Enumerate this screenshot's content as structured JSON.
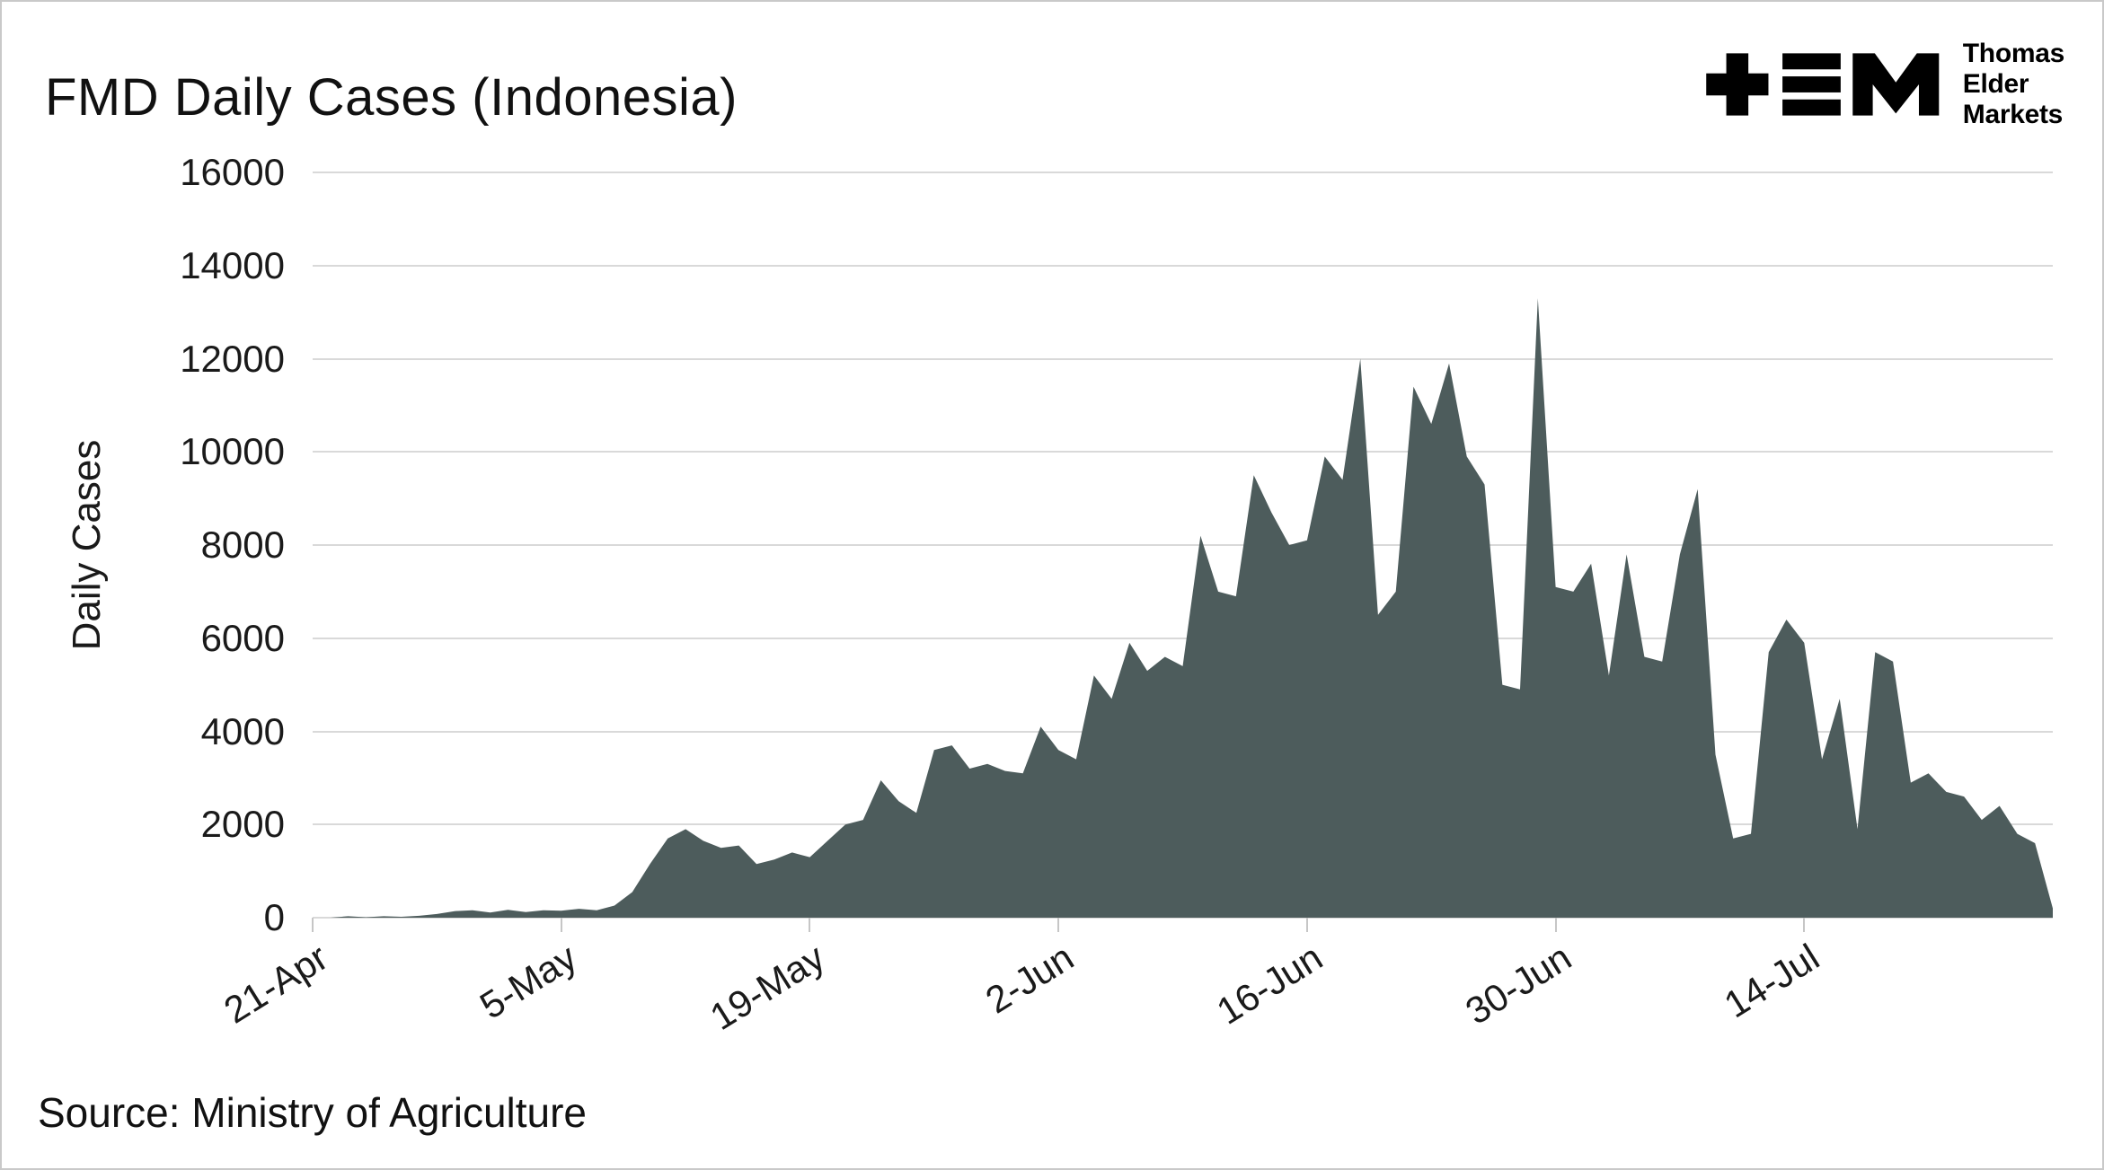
{
  "title": "FMD Daily Cases (Indonesia)",
  "source": "Source: Ministry of Agriculture",
  "logo": {
    "name": "Thomas Elder Markets",
    "lines": [
      "Thomas",
      "Elder",
      "Markets"
    ]
  },
  "colors": {
    "area_fill": "#4d5c5c",
    "gridline": "#d9d9d9",
    "text": "#1a1a1a",
    "background": "#ffffff"
  },
  "chart_data": {
    "type": "area",
    "title": "FMD Daily Cases (Indonesia)",
    "xlabel": "",
    "ylabel": "Daily Cases",
    "ylim": [
      0,
      16000
    ],
    "grid": "horizontal",
    "legend": "none",
    "fill_color": "#4d5c5c",
    "y_ticks": [
      0,
      2000,
      4000,
      6000,
      8000,
      10000,
      12000,
      14000,
      16000
    ],
    "x_ticks": [
      {
        "label": "21-Apr",
        "day": 0
      },
      {
        "label": "5-May",
        "day": 14
      },
      {
        "label": "19-May",
        "day": 28
      },
      {
        "label": "2-Jun",
        "day": 42
      },
      {
        "label": "16-Jun",
        "day": 56
      },
      {
        "label": "30-Jun",
        "day": 70
      },
      {
        "label": "14-Jul",
        "day": 84
      }
    ],
    "x": [
      "21-Apr",
      "22-Apr",
      "23-Apr",
      "24-Apr",
      "25-Apr",
      "26-Apr",
      "27-Apr",
      "28-Apr",
      "29-Apr",
      "30-Apr",
      "1-May",
      "2-May",
      "3-May",
      "4-May",
      "5-May",
      "6-May",
      "7-May",
      "8-May",
      "9-May",
      "10-May",
      "11-May",
      "12-May",
      "13-May",
      "14-May",
      "15-May",
      "16-May",
      "17-May",
      "18-May",
      "19-May",
      "20-May",
      "21-May",
      "22-May",
      "23-May",
      "24-May",
      "25-May",
      "26-May",
      "27-May",
      "28-May",
      "29-May",
      "30-May",
      "31-May",
      "1-Jun",
      "2-Jun",
      "3-Jun",
      "4-Jun",
      "5-Jun",
      "6-Jun",
      "7-Jun",
      "8-Jun",
      "9-Jun",
      "10-Jun",
      "11-Jun",
      "12-Jun",
      "13-Jun",
      "14-Jun",
      "15-Jun",
      "16-Jun",
      "17-Jun",
      "18-Jun",
      "19-Jun",
      "20-Jun",
      "21-Jun",
      "22-Jun",
      "23-Jun",
      "24-Jun",
      "25-Jun",
      "26-Jun",
      "27-Jun",
      "28-Jun",
      "29-Jun",
      "30-Jun",
      "1-Jul",
      "2-Jul",
      "3-Jul",
      "4-Jul",
      "5-Jul",
      "6-Jul",
      "7-Jul",
      "8-Jul",
      "9-Jul",
      "10-Jul",
      "11-Jul",
      "12-Jul",
      "13-Jul",
      "14-Jul",
      "15-Jul",
      "16-Jul",
      "17-Jul",
      "18-Jul",
      "19-Jul",
      "20-Jul",
      "21-Jul",
      "22-Jul",
      "23-Jul",
      "24-Jul",
      "25-Jul",
      "26-Jul",
      "27-Jul",
      "28-Jul"
    ],
    "values": [
      0,
      0,
      30,
      10,
      30,
      20,
      40,
      80,
      140,
      160,
      110,
      170,
      120,
      160,
      150,
      190,
      160,
      260,
      550,
      1150,
      1700,
      1900,
      1650,
      1500,
      1550,
      1150,
      1250,
      1400,
      1300,
      1650,
      2000,
      2100,
      2950,
      2500,
      2250,
      3600,
      3700,
      3200,
      3300,
      3150,
      3100,
      4100,
      3600,
      3400,
      5200,
      4700,
      5900,
      5300,
      5600,
      5400,
      8200,
      7000,
      6900,
      9500,
      8700,
      8000,
      8100,
      9900,
      9400,
      12000,
      6500,
      7000,
      11400,
      10600,
      11900,
      9900,
      9300,
      5000,
      4900,
      13300,
      7100,
      7000,
      7600,
      5200,
      7800,
      5600,
      5500,
      7800,
      9200,
      3500,
      1700,
      1800,
      5700,
      6400,
      5900,
      3400,
      4700,
      1900,
      5700,
      5500,
      2900,
      3100,
      2700,
      2600,
      2100,
      2400,
      1800,
      1600,
      200
    ]
  }
}
